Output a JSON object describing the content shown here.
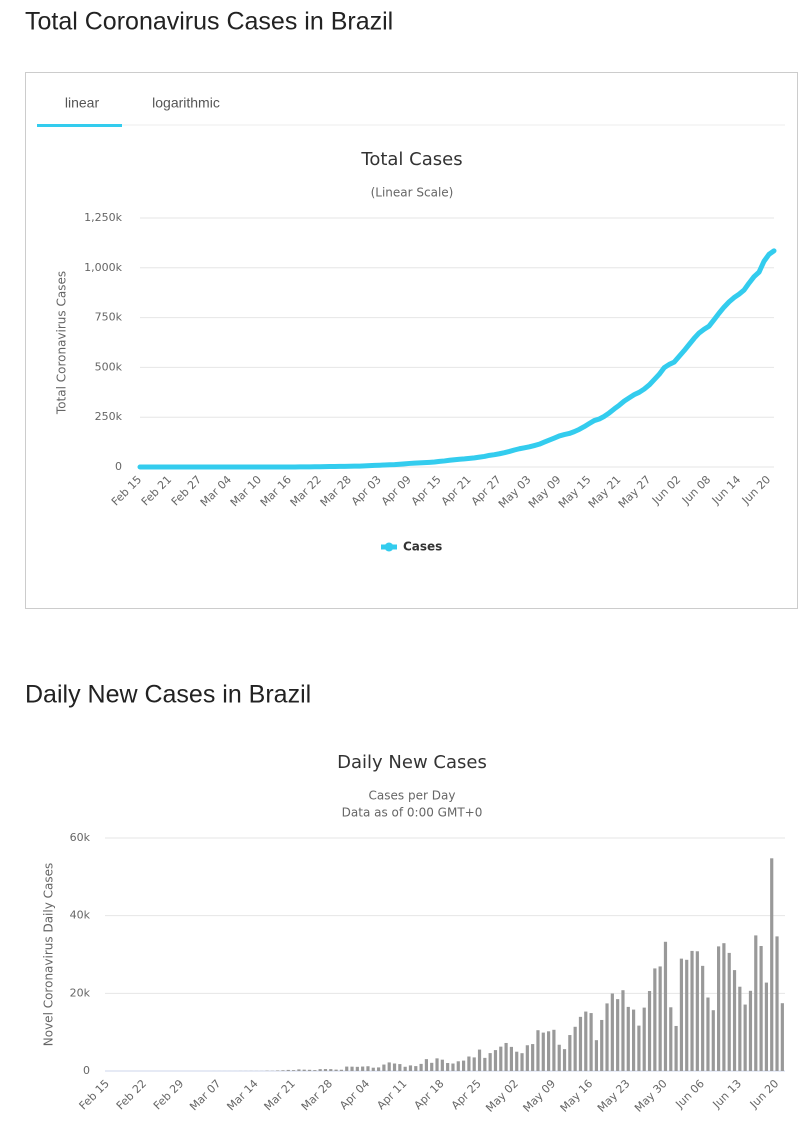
{
  "page": {
    "heading_total": "Total Coronavirus Cases in Brazil",
    "tabs": [
      "linear",
      "logarithmic"
    ],
    "heading_daily": "Daily New Cases in Brazil"
  },
  "chart_data": [
    {
      "type": "line",
      "title": "Total Cases",
      "subtitle": "(Linear Scale)",
      "y_label": "Total Coronavirus Cases",
      "categories": [
        "Feb 15",
        null,
        null,
        null,
        null,
        null,
        "Feb 21",
        null,
        null,
        null,
        null,
        null,
        "Feb 27",
        null,
        null,
        null,
        null,
        null,
        "Mar 04",
        null,
        null,
        null,
        null,
        null,
        "Mar 10",
        null,
        null,
        null,
        null,
        null,
        "Mar 16",
        null,
        null,
        null,
        null,
        null,
        "Mar 22",
        null,
        null,
        null,
        null,
        null,
        "Mar 28",
        null,
        null,
        null,
        null,
        null,
        "Apr 03",
        null,
        null,
        null,
        null,
        null,
        "Apr 09",
        null,
        null,
        null,
        null,
        null,
        "Apr 15",
        null,
        null,
        null,
        null,
        null,
        "Apr 21",
        null,
        null,
        null,
        null,
        null,
        "Apr 27",
        null,
        null,
        null,
        null,
        null,
        "May 03",
        null,
        null,
        null,
        null,
        null,
        "May 09",
        null,
        null,
        null,
        null,
        null,
        "May 15",
        null,
        null,
        null,
        null,
        null,
        "May 21",
        null,
        null,
        null,
        null,
        null,
        "May 27",
        null,
        null,
        null,
        null,
        null,
        "Jun 02",
        null,
        null,
        null,
        null,
        null,
        "Jun 08",
        null,
        null,
        null,
        null,
        null,
        "Jun 14",
        null,
        null,
        null,
        null,
        null,
        "Jun 20",
        null
      ],
      "series": [
        {
          "name": "Cases",
          "color": "#33ccee",
          "values": [
            0,
            0,
            0,
            0,
            0,
            0,
            0,
            0,
            0,
            0,
            0,
            1,
            1,
            1,
            2,
            2,
            2,
            2,
            3,
            4,
            8,
            13,
            19,
            25,
            34,
            52,
            77,
            98,
            121,
            200,
            234,
            291,
            428,
            621,
            904,
            1128,
            1546,
            1891,
            2201,
            2433,
            2915,
            3417,
            3904,
            4256,
            4579,
            5717,
            6836,
            7910,
            9056,
            10278,
            11130,
            12056,
            13717,
            15927,
            17857,
            19638,
            20727,
            22169,
            23430,
            25262,
            28320,
            30425,
            33682,
            36599,
            38654,
            40581,
            43079,
            45757,
            49492,
            52995,
            58509,
            61888,
            66501,
            71886,
            78162,
            85380,
            91589,
            96559,
            101147,
            107780,
            114715,
            125218,
            135106,
            145328,
            155939,
            162699,
            168331,
            177589,
            188974,
            202918,
            218223,
            233142,
            241080,
            254220,
            271628,
            291579,
            310087,
            330890,
            347398,
            363211,
            374898,
            391222,
            411821,
            438238,
            465166,
            498440,
            514849,
            526447,
            555383,
            584016,
            614941,
            645771,
            672846,
            691758,
            707412,
            739503,
            772416,
            802828,
            828810,
            850514,
            867624,
            888271,
            923189,
            955377,
            978142,
            1032913,
            1067579,
            1085038
          ]
        }
      ],
      "ylim": [
        0,
        1250000
      ],
      "yticks": [
        0,
        {
          "value": 250000,
          "label": "250k"
        },
        {
          "value": 500000,
          "label": "500k"
        },
        {
          "value": 750000,
          "label": "750k"
        },
        {
          "value": 1000000,
          "label": "1,000k"
        },
        {
          "value": 1250000,
          "label": "1,250k"
        }
      ],
      "grid": true,
      "legend": "bottom"
    },
    {
      "type": "bar",
      "title": "Daily New Cases",
      "subtitle": [
        "Cases per Day",
        "Data as of 0:00 GMT+0"
      ],
      "y_label": "Novel Coronavirus Daily Cases",
      "categories": [
        "Feb 15",
        null,
        null,
        null,
        null,
        null,
        null,
        "Feb 22",
        null,
        null,
        null,
        null,
        null,
        null,
        "Feb 29",
        null,
        null,
        null,
        null,
        null,
        null,
        "Mar 07",
        null,
        null,
        null,
        null,
        null,
        null,
        "Mar 14",
        null,
        null,
        null,
        null,
        null,
        null,
        "Mar 21",
        null,
        null,
        null,
        null,
        null,
        null,
        "Mar 28",
        null,
        null,
        null,
        null,
        null,
        null,
        "Apr 04",
        null,
        null,
        null,
        null,
        null,
        null,
        "Apr 11",
        null,
        null,
        null,
        null,
        null,
        null,
        "Apr 18",
        null,
        null,
        null,
        null,
        null,
        null,
        "Apr 25",
        null,
        null,
        null,
        null,
        null,
        null,
        "May 02",
        null,
        null,
        null,
        null,
        null,
        null,
        "May 09",
        null,
        null,
        null,
        null,
        null,
        null,
        "May 16",
        null,
        null,
        null,
        null,
        null,
        null,
        "May 23",
        null,
        null,
        null,
        null,
        null,
        null,
        "May 30",
        null,
        null,
        null,
        null,
        null,
        null,
        "Jun 06",
        null,
        null,
        null,
        null,
        null,
        null,
        "Jun 13",
        null,
        null,
        null,
        null,
        null,
        null,
        "Jun 20",
        null
      ],
      "values": [
        0,
        0,
        0,
        0,
        0,
        0,
        0,
        0,
        0,
        0,
        0,
        1,
        0,
        0,
        1,
        0,
        0,
        0,
        1,
        1,
        5,
        5,
        6,
        5,
        7,
        18,
        18,
        25,
        21,
        23,
        79,
        57,
        137,
        193,
        283,
        224,
        418,
        345,
        310,
        232,
        482,
        502,
        487,
        352,
        323,
        1138,
        1119,
        1074,
        1146,
        1222,
        852,
        926,
        1661,
        2210,
        1930,
        1781,
        1089,
        1442,
        1261,
        1832,
        3058,
        2105,
        3257,
        2917,
        2055,
        1927,
        2498,
        2678,
        3735,
        3503,
        5514,
        3379,
        4613,
        5385,
        6276,
        7218,
        6209,
        4970,
        4588,
        6633,
        6935,
        10503,
        9888,
        10222,
        10611,
        6760,
        5632,
        9258,
        11385,
        13944,
        15305,
        14919,
        7938,
        13140,
        17408,
        19951,
        18508,
        20803,
        16508,
        15813,
        11687,
        16324,
        20599,
        26417,
        26928,
        33274,
        16409,
        11598,
        28936,
        28633,
        30925,
        30830,
        27075,
        18921,
        15654,
        32091,
        32913,
        30412,
        25982,
        21704,
        17110,
        20647,
        34918,
        32188,
        22765,
        54771,
        34666,
        17459
      ],
      "color": "#999999",
      "ylim": [
        0,
        60000
      ],
      "yticks": [
        0,
        {
          "value": 20000,
          "label": "20k"
        },
        {
          "value": 40000,
          "label": "40k"
        },
        {
          "value": 60000,
          "label": "60k"
        }
      ],
      "grid": true
    }
  ]
}
